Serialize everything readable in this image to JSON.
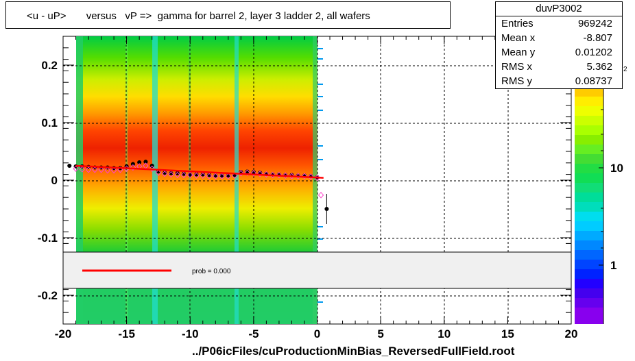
{
  "title": "<u - uP>       versus   vP =>  gamma for barrel 2, layer 3 ladder 2, all wafers",
  "x_axis_title": "../P06icFiles/cuProductionMinBias_ReversedFullField.root",
  "stats": {
    "name": "duvP3002",
    "rows": [
      {
        "key": "Entries",
        "value": "969242"
      },
      {
        "key": "Mean x",
        "value": "-8.807"
      },
      {
        "key": "Mean y",
        "value": "0.01202"
      },
      {
        "key": "RMS x",
        "value": "5.362"
      },
      {
        "key": "RMS y",
        "value": "0.08737"
      }
    ]
  },
  "legend": {
    "fit_label": "prob = 0.000",
    "fit_color": "#ff0000"
  },
  "palette_ticks": [
    "1",
    "10"
  ],
  "palette_exponent_fragment": "2",
  "chart_data": {
    "type": "heatmap",
    "title": "<u - uP>       versus   vP =>  gamma for barrel 2, layer 3 ladder 2, all wafers",
    "xlabel": "../P06icFiles/cuProductionMinBias_ReversedFullField.root",
    "ylabel": "",
    "xlim": [
      -20,
      20
    ],
    "ylim": [
      -0.25,
      0.25
    ],
    "x_ticks": [
      "-20",
      "-15",
      "-10",
      "-5",
      "0",
      "5",
      "10",
      "15",
      "20"
    ],
    "y_ticks": [
      "-0.2",
      "-0.1",
      "0",
      "0.1",
      "0.2"
    ],
    "grid": true,
    "z_scale": "log",
    "occupied_x_range": [
      -19.2,
      0.1
    ],
    "series": [
      {
        "marker": "black-circle",
        "x": [
          -19.5,
          -19.0,
          -18.5,
          -18.0,
          -17.5,
          -17.0,
          -16.5,
          -16.0,
          -15.5,
          -15.0,
          -14.5,
          -14.0,
          -13.5,
          -13.0,
          -12.5,
          -12.0,
          -11.5,
          -11.0,
          -10.5,
          -10.0,
          -9.5,
          -9.0,
          -8.5,
          -8.0,
          -7.5,
          -7.0,
          -6.5,
          -6.0,
          -5.5,
          -5.0,
          -4.5,
          -4.0,
          -3.5,
          -3.0,
          -2.5,
          -2.0,
          -1.5,
          -1.0,
          -0.5,
          0.0,
          0.75
        ],
        "y": [
          0.025,
          0.024,
          0.024,
          0.023,
          0.022,
          0.022,
          0.022,
          0.021,
          0.021,
          0.024,
          0.028,
          0.031,
          0.032,
          0.025,
          0.015,
          0.013,
          0.012,
          0.012,
          0.011,
          0.01,
          0.01,
          0.01,
          0.009,
          0.008,
          0.008,
          0.008,
          0.009,
          0.014,
          0.015,
          0.014,
          0.013,
          0.011,
          0.01,
          0.01,
          0.009,
          0.009,
          0.008,
          0.008,
          0.007,
          0.005,
          -0.05
        ]
      },
      {
        "marker": "pink-diamond",
        "x": [
          -19.0,
          -18.5,
          -18.0,
          -17.5,
          -17.0,
          -16.5,
          -16.0,
          -15.5,
          -15.0,
          -14.5,
          -14.0,
          -13.5,
          -13.0,
          -12.5,
          -12.0,
          -11.5,
          -11.0,
          -10.5,
          -10.0,
          -9.5,
          -9.0,
          -8.5,
          -8.0,
          -7.5,
          -7.0,
          -6.5,
          -6.0,
          -5.5,
          -5.0,
          -4.5,
          -4.0,
          -3.5,
          -3.0,
          -2.5,
          -2.0,
          -1.5,
          -1.0,
          -0.5,
          0.0,
          0.3
        ],
        "y": [
          0.02,
          0.019,
          0.018,
          0.018,
          0.018,
          0.017,
          0.017,
          0.018,
          0.02,
          0.022,
          0.024,
          0.025,
          0.02,
          0.013,
          0.011,
          0.01,
          0.009,
          0.009,
          0.009,
          0.008,
          0.008,
          0.007,
          0.007,
          0.007,
          0.007,
          0.008,
          0.012,
          0.013,
          0.012,
          0.011,
          0.01,
          0.009,
          0.009,
          0.008,
          0.007,
          0.007,
          0.007,
          0.006,
          0.004,
          -0.026
        ]
      },
      {
        "marker": "red-fit-line",
        "x": [
          -19.0,
          0.5
        ],
        "y": [
          0.025,
          0.004
        ]
      }
    ]
  }
}
